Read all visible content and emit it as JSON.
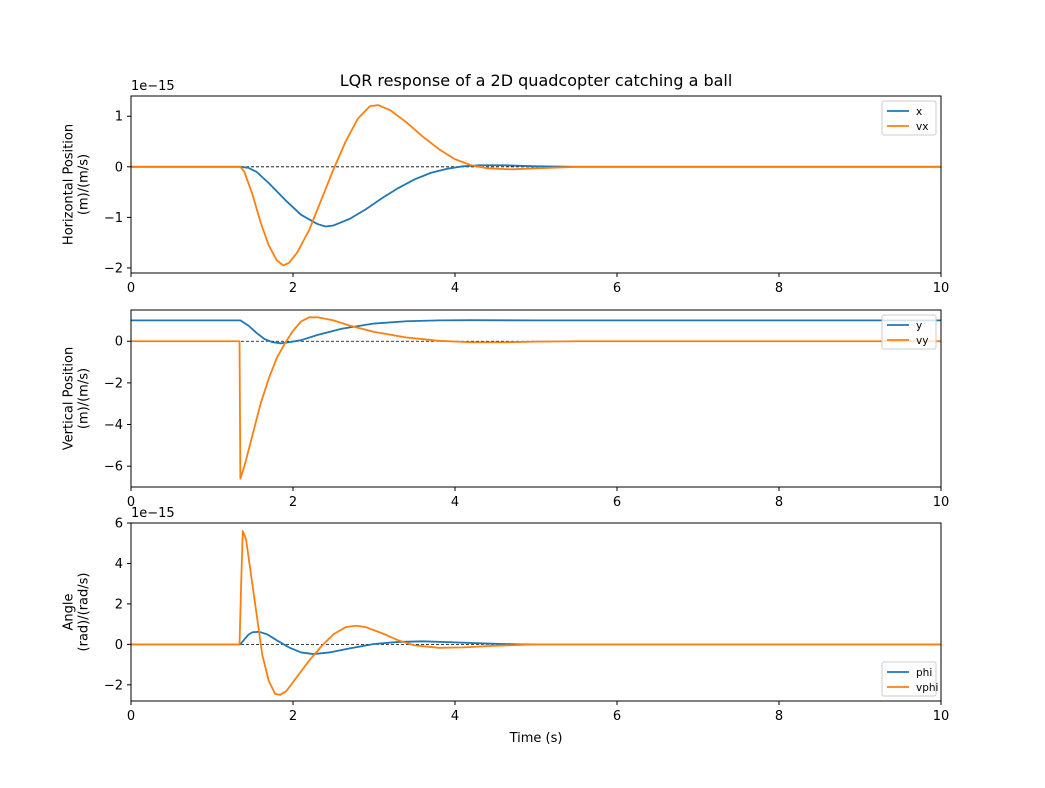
{
  "chart_data": {
    "type": "line",
    "title": "LQR response of a 2D quadcopter catching a ball",
    "xlabel": "Time (s)",
    "xlim": [
      0,
      10
    ],
    "xticks": [
      "0",
      "2",
      "4",
      "6",
      "8",
      "10"
    ],
    "colors": {
      "series1": "#1f77b4",
      "series2": "#ff7f0e",
      "zero_line": "#000000"
    },
    "subplots": [
      {
        "ylabel": "Horizontal Position\n(m)/(m/s)",
        "offset_text": "1e−15",
        "ylim": [
          -2.1,
          1.4
        ],
        "yticks": [
          -2,
          -1,
          0,
          1
        ],
        "ytick_labels": [
          "−2",
          "−1",
          "0",
          "1"
        ],
        "legend_position": "top-right",
        "series": [
          {
            "name": "x",
            "points": [
              [
                0,
                0
              ],
              [
                1.35,
                0
              ],
              [
                1.45,
                -0.02
              ],
              [
                1.55,
                -0.1
              ],
              [
                1.7,
                -0.32
              ],
              [
                1.9,
                -0.65
              ],
              [
                2.1,
                -0.95
              ],
              [
                2.3,
                -1.13
              ],
              [
                2.4,
                -1.18
              ],
              [
                2.5,
                -1.16
              ],
              [
                2.7,
                -1.03
              ],
              [
                2.9,
                -0.84
              ],
              [
                3.1,
                -0.62
              ],
              [
                3.3,
                -0.42
              ],
              [
                3.5,
                -0.25
              ],
              [
                3.7,
                -0.12
              ],
              [
                3.9,
                -0.04
              ],
              [
                4.1,
                0.01
              ],
              [
                4.3,
                0.03
              ],
              [
                4.6,
                0.03
              ],
              [
                5.0,
                0.01
              ],
              [
                5.5,
                0
              ],
              [
                10,
                0
              ]
            ]
          },
          {
            "name": "vx",
            "points": [
              [
                0,
                0
              ],
              [
                1.35,
                0
              ],
              [
                1.4,
                -0.1
              ],
              [
                1.5,
                -0.55
              ],
              [
                1.6,
                -1.1
              ],
              [
                1.7,
                -1.55
              ],
              [
                1.8,
                -1.85
              ],
              [
                1.88,
                -1.95
              ],
              [
                1.95,
                -1.9
              ],
              [
                2.05,
                -1.7
              ],
              [
                2.2,
                -1.25
              ],
              [
                2.35,
                -0.65
              ],
              [
                2.5,
                -0.05
              ],
              [
                2.65,
                0.5
              ],
              [
                2.8,
                0.95
              ],
              [
                2.95,
                1.2
              ],
              [
                3.05,
                1.22
              ],
              [
                3.2,
                1.12
              ],
              [
                3.4,
                0.88
              ],
              [
                3.6,
                0.6
              ],
              [
                3.8,
                0.35
              ],
              [
                4.0,
                0.15
              ],
              [
                4.2,
                0.03
              ],
              [
                4.4,
                -0.03
              ],
              [
                4.7,
                -0.05
              ],
              [
                5.0,
                -0.03
              ],
              [
                5.5,
                0
              ],
              [
                10,
                0
              ]
            ]
          }
        ]
      },
      {
        "ylabel": "Vertical Position\n(m)/(m/s)",
        "offset_text": "",
        "ylim": [
          -7.0,
          1.5
        ],
        "yticks": [
          -6,
          -4,
          -2,
          0
        ],
        "ytick_labels": [
          "−6",
          "−4",
          "−2",
          "0"
        ],
        "legend_position": "top-right",
        "series": [
          {
            "name": "y",
            "points": [
              [
                0,
                1
              ],
              [
                1.35,
                1
              ],
              [
                1.45,
                0.75
              ],
              [
                1.55,
                0.4
              ],
              [
                1.65,
                0.1
              ],
              [
                1.75,
                -0.05
              ],
              [
                1.85,
                -0.1
              ],
              [
                1.95,
                -0.05
              ],
              [
                2.1,
                0.05
              ],
              [
                2.3,
                0.3
              ],
              [
                2.6,
                0.6
              ],
              [
                3.0,
                0.85
              ],
              [
                3.4,
                0.96
              ],
              [
                3.8,
                1.0
              ],
              [
                4.2,
                1.01
              ],
              [
                5.0,
                1.0
              ],
              [
                10,
                1
              ]
            ]
          },
          {
            "name": "vy",
            "points": [
              [
                0,
                0
              ],
              [
                1.34,
                0
              ],
              [
                1.35,
                -6.6
              ],
              [
                1.4,
                -6.0
              ],
              [
                1.5,
                -4.5
              ],
              [
                1.6,
                -3.0
              ],
              [
                1.7,
                -1.8
              ],
              [
                1.8,
                -0.8
              ],
              [
                1.9,
                -0.1
              ],
              [
                2.0,
                0.5
              ],
              [
                2.1,
                0.95
              ],
              [
                2.2,
                1.15
              ],
              [
                2.3,
                1.15
              ],
              [
                2.5,
                1.0
              ],
              [
                2.7,
                0.75
              ],
              [
                3.0,
                0.45
              ],
              [
                3.4,
                0.18
              ],
              [
                3.8,
                0.02
              ],
              [
                4.2,
                -0.05
              ],
              [
                4.6,
                -0.05
              ],
              [
                5.0,
                -0.02
              ],
              [
                5.5,
                0
              ],
              [
                10,
                0
              ]
            ]
          }
        ]
      },
      {
        "ylabel": "Angle\n(rad)/(rad/s)",
        "offset_text": "1e−15",
        "ylim": [
          -2.8,
          6.0
        ],
        "yticks": [
          -2,
          0,
          2,
          4,
          6
        ],
        "ytick_labels": [
          "−2",
          "0",
          "2",
          "4",
          "6"
        ],
        "legend_position": "bottom-right",
        "series": [
          {
            "name": "phi",
            "points": [
              [
                0,
                0
              ],
              [
                1.35,
                0
              ],
              [
                1.4,
                0.25
              ],
              [
                1.45,
                0.48
              ],
              [
                1.5,
                0.6
              ],
              [
                1.58,
                0.62
              ],
              [
                1.68,
                0.5
              ],
              [
                1.8,
                0.2
              ],
              [
                1.95,
                -0.15
              ],
              [
                2.1,
                -0.4
              ],
              [
                2.25,
                -0.48
              ],
              [
                2.45,
                -0.4
              ],
              [
                2.7,
                -0.2
              ],
              [
                3.0,
                0.02
              ],
              [
                3.3,
                0.12
              ],
              [
                3.6,
                0.15
              ],
              [
                4.0,
                0.1
              ],
              [
                4.4,
                0.04
              ],
              [
                4.8,
                0
              ],
              [
                10,
                0
              ]
            ]
          },
          {
            "name": "vphi",
            "points": [
              [
                0,
                0
              ],
              [
                1.34,
                0
              ],
              [
                1.36,
                3.0
              ],
              [
                1.38,
                5.6
              ],
              [
                1.42,
                5.2
              ],
              [
                1.48,
                3.5
              ],
              [
                1.55,
                1.5
              ],
              [
                1.62,
                -0.5
              ],
              [
                1.7,
                -1.8
              ],
              [
                1.78,
                -2.45
              ],
              [
                1.84,
                -2.5
              ],
              [
                1.92,
                -2.3
              ],
              [
                2.05,
                -1.6
              ],
              [
                2.2,
                -0.8
              ],
              [
                2.35,
                -0.1
              ],
              [
                2.5,
                0.5
              ],
              [
                2.65,
                0.85
              ],
              [
                2.78,
                0.92
              ],
              [
                2.9,
                0.85
              ],
              [
                3.1,
                0.55
              ],
              [
                3.3,
                0.2
              ],
              [
                3.5,
                -0.05
              ],
              [
                3.8,
                -0.17
              ],
              [
                4.1,
                -0.15
              ],
              [
                4.5,
                -0.07
              ],
              [
                5.0,
                0
              ],
              [
                10,
                0
              ]
            ]
          }
        ]
      }
    ]
  }
}
